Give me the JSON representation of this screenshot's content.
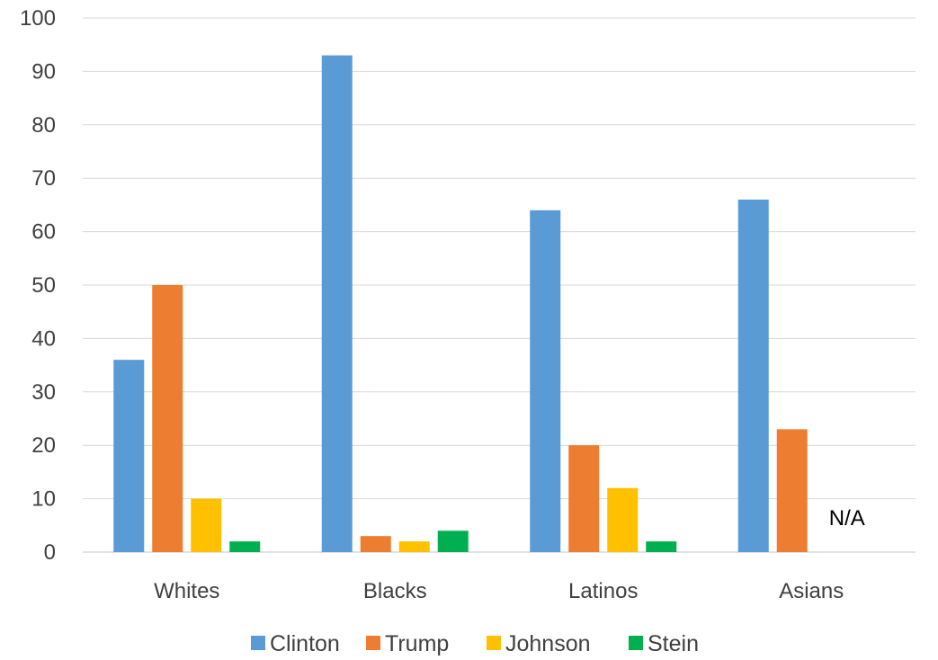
{
  "chart_data": {
    "type": "bar",
    "categories": [
      "Whites",
      "Blacks",
      "Latinos",
      "Asians"
    ],
    "series": [
      {
        "name": "Clinton",
        "values": [
          36,
          93,
          64,
          66
        ],
        "color": "#5B9BD5"
      },
      {
        "name": "Trump",
        "values": [
          50,
          3,
          20,
          23
        ],
        "color": "#ED7D31"
      },
      {
        "name": "Johnson",
        "values": [
          10,
          2,
          12,
          null
        ],
        "color": "#FFC000"
      },
      {
        "name": "Stein",
        "values": [
          2,
          4,
          2,
          null
        ],
        "color": "#00B050"
      }
    ],
    "ylim": [
      0,
      100
    ],
    "yticks": [
      0,
      10,
      20,
      30,
      40,
      50,
      60,
      70,
      80,
      90,
      100
    ],
    "grid": true,
    "legend_position": "bottom",
    "annotations": [
      {
        "category": "Asians",
        "text": "N/A"
      }
    ],
    "title": "",
    "xlabel": "",
    "ylabel": ""
  }
}
